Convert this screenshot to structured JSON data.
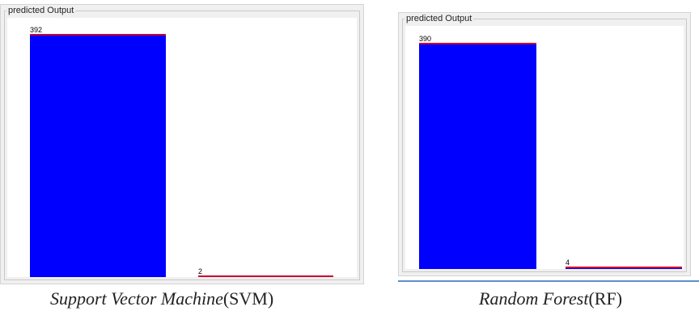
{
  "panels": [
    {
      "group_title": "predicted Output",
      "caption_italic": "Support Vector Machine",
      "caption_plain": "(SVM)"
    },
    {
      "group_title": "predicted Output",
      "caption_italic": "Random Forest",
      "caption_plain": "(RF)"
    }
  ],
  "colors": {
    "bar_fill": "#0000ff",
    "bar_top": "#cc0033",
    "panel_bg": "#f0f0f0",
    "accent_line": "#5b8fd0"
  },
  "chart_data": [
    {
      "type": "bar",
      "title": "predicted Output",
      "categories": [
        "",
        ""
      ],
      "values": [
        392,
        2
      ],
      "data_labels": [
        "392",
        "2"
      ],
      "ylim": [
        0,
        392
      ]
    },
    {
      "type": "bar",
      "title": "predicted Output",
      "categories": [
        "",
        ""
      ],
      "values": [
        390,
        4
      ],
      "data_labels": [
        "390",
        "4"
      ],
      "ylim": [
        0,
        392
      ]
    }
  ]
}
